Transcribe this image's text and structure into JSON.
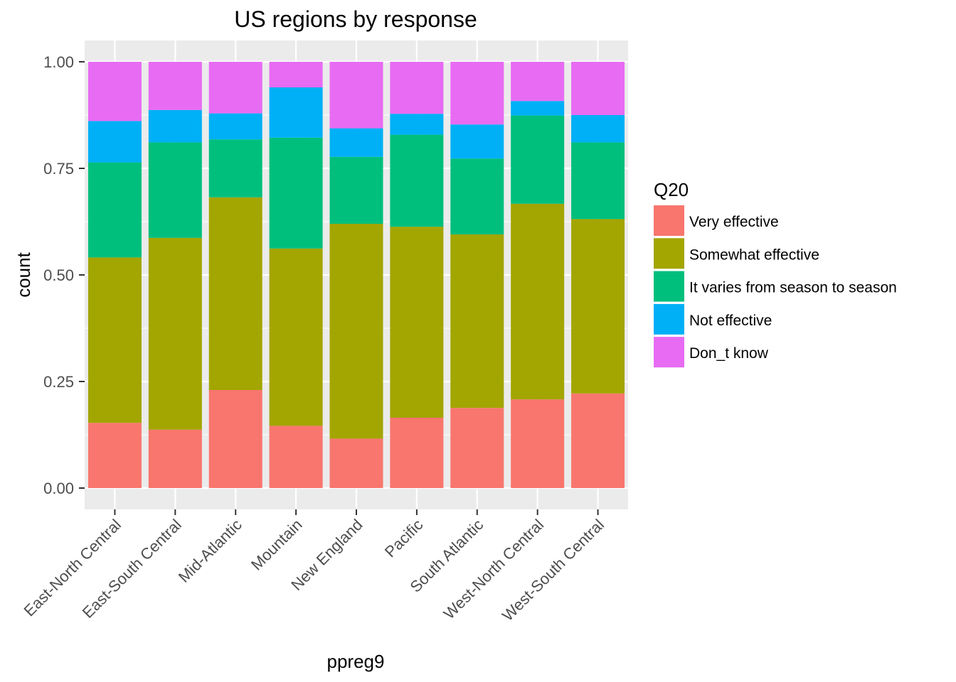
{
  "chart_data": {
    "type": "bar",
    "stacked": "fill",
    "title": "US regions by response",
    "xlabel": "ppreg9",
    "ylabel": "count",
    "ylim": [
      0,
      1
    ],
    "yticks": [
      "0.00",
      "0.25",
      "0.50",
      "0.75",
      "1.00"
    ],
    "ytick_values": [
      0,
      0.25,
      0.5,
      0.75,
      1
    ],
    "grid": true,
    "categories": [
      "East-North Central",
      "East-South Central",
      "Mid-Atlantic",
      "Mountain",
      "New England",
      "Pacific",
      "South Atlantic",
      "West-North Central",
      "West-South Central"
    ],
    "legend": {
      "title": "Q20",
      "placement": "right"
    },
    "series": [
      {
        "name": "Very effective",
        "color": "#F8766D",
        "values": [
          0.153,
          0.137,
          0.23,
          0.146,
          0.116,
          0.165,
          0.188,
          0.208,
          0.222
        ]
      },
      {
        "name": "Somewhat effective",
        "color": "#A3A500",
        "values": [
          0.388,
          0.45,
          0.452,
          0.416,
          0.504,
          0.448,
          0.407,
          0.459,
          0.409
        ]
      },
      {
        "name": "It varies from season to season",
        "color": "#00BF7D",
        "values": [
          0.223,
          0.224,
          0.136,
          0.26,
          0.157,
          0.216,
          0.178,
          0.207,
          0.18
        ]
      },
      {
        "name": "Not effective",
        "color": "#00B0F6",
        "values": [
          0.097,
          0.076,
          0.061,
          0.118,
          0.067,
          0.049,
          0.08,
          0.034,
          0.064
        ]
      },
      {
        "name": "Don_t know",
        "color": "#E76BF3",
        "values": [
          0.139,
          0.113,
          0.121,
          0.06,
          0.156,
          0.122,
          0.147,
          0.092,
          0.125
        ]
      }
    ]
  }
}
